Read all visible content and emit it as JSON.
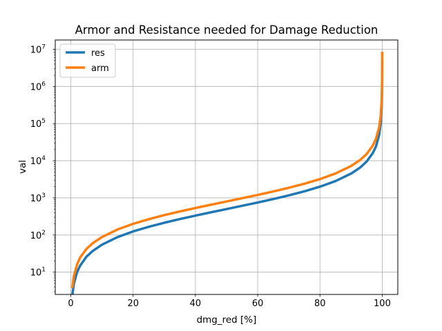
{
  "chart_data": {
    "type": "line",
    "title": "Armor and Resistance needed for Damage Reduction",
    "xlabel": "dmg_red [%]",
    "ylabel": "val",
    "xlim": [
      -5,
      105
    ],
    "ylim_log10": [
      0.4,
      7.25
    ],
    "y_scale": "log",
    "grid": true,
    "legend_position": "top-left",
    "x_ticks": [
      {
        "value": 0,
        "label": "0"
      },
      {
        "value": 20,
        "label": "20"
      },
      {
        "value": 40,
        "label": "40"
      },
      {
        "value": 60,
        "label": "60"
      },
      {
        "value": 80,
        "label": "80"
      },
      {
        "value": 100,
        "label": "100"
      }
    ],
    "y_ticks": [
      {
        "exp": 1,
        "base": "10",
        "sup": "1"
      },
      {
        "exp": 2,
        "base": "10",
        "sup": "2"
      },
      {
        "exp": 3,
        "base": "10",
        "sup": "3"
      },
      {
        "exp": 4,
        "base": "10",
        "sup": "4"
      },
      {
        "exp": 5,
        "base": "10",
        "sup": "5"
      },
      {
        "exp": 6,
        "base": "10",
        "sup": "6"
      },
      {
        "exp": 7,
        "base": "10",
        "sup": "7"
      }
    ],
    "x": [
      0.5,
      1,
      2,
      3,
      5,
      7,
      10,
      15,
      20,
      25,
      30,
      35,
      40,
      45,
      50,
      55,
      60,
      65,
      70,
      75,
      80,
      85,
      90,
      93,
      95,
      97,
      98,
      99,
      99.5,
      99.8,
      99.9,
      99.95,
      99.99
    ],
    "series": [
      {
        "name": "res",
        "color": "#1f77b4",
        "values": [
          2.5,
          5,
          10,
          15,
          26,
          37,
          55,
          88,
          125,
          166,
          214,
          269,
          333,
          409,
          500,
          611,
          750,
          929,
          1167,
          1500,
          2000,
          2833,
          4500,
          6643,
          9500,
          16167,
          24500,
          49500,
          99500,
          249500,
          499500,
          999500,
          4999500
        ]
      },
      {
        "name": "arm",
        "color": "#ff7f0e",
        "values": [
          4,
          8,
          16,
          25,
          42,
          60,
          88,
          141,
          200,
          266,
          343,
          431,
          533,
          654,
          800,
          978,
          1200,
          1486,
          1867,
          2400,
          3200,
          4533,
          7200,
          10629,
          15200,
          25867,
          39200,
          79200,
          159200,
          399200,
          799200,
          1599200,
          7999200
        ]
      }
    ]
  }
}
